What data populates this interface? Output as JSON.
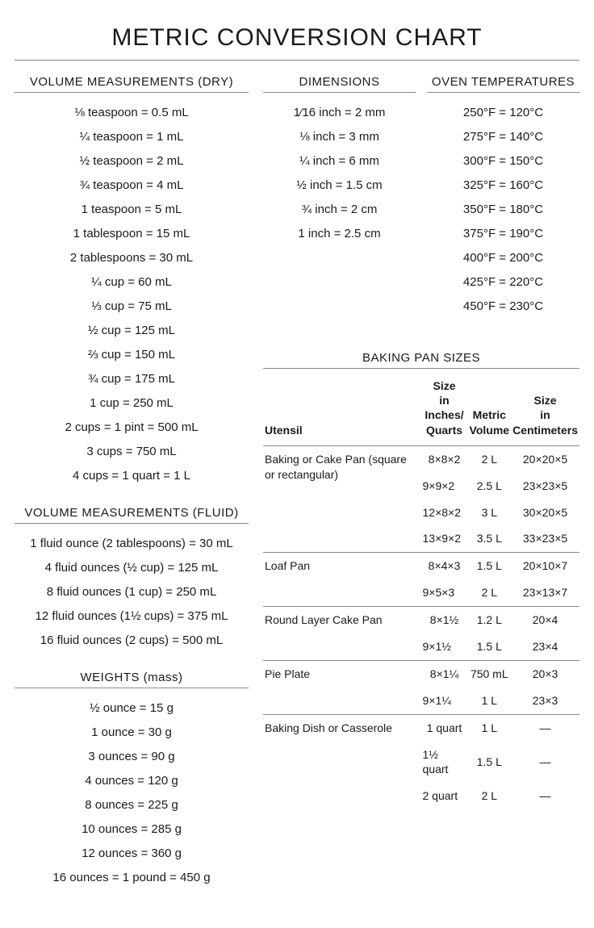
{
  "title": "METRIC CONVERSION CHART",
  "sections": {
    "volume_dry": {
      "header": "VOLUME MEASUREMENTS (DRY)",
      "items": [
        "⅛ teaspoon = 0.5 mL",
        "¼ teaspoon = 1 mL",
        "½ teaspoon = 2 mL",
        "¾ teaspoon = 4 mL",
        "1 teaspoon = 5 mL",
        "1 tablespoon = 15 mL",
        "2 tablespoons = 30 mL",
        "¼ cup = 60 mL",
        "⅓ cup = 75 mL",
        "½ cup = 125 mL",
        "⅔ cup = 150 mL",
        "¾ cup = 175 mL",
        "1 cup = 250 mL",
        "2 cups = 1 pint = 500 mL",
        "3 cups = 750 mL",
        "4 cups = 1 quart = 1 L"
      ]
    },
    "volume_fluid": {
      "header": "VOLUME MEASUREMENTS (FLUID)",
      "items": [
        "1 fluid ounce (2 tablespoons) = 30 mL",
        "4 fluid ounces (½ cup) = 125 mL",
        "8 fluid ounces (1 cup) = 250 mL",
        "12 fluid ounces (1½ cups) = 375 mL",
        "16 fluid ounces (2 cups) = 500 mL"
      ]
    },
    "weights": {
      "header": "WEIGHTS (mass)",
      "items": [
        "½ ounce = 15 g",
        "1 ounce = 30 g",
        "3 ounces = 90 g",
        "4 ounces = 120 g",
        "8 ounces = 225 g",
        "10 ounces = 285 g",
        "12 ounces = 360 g",
        "16 ounces = 1 pound = 450 g"
      ]
    },
    "dimensions": {
      "header": "DIMENSIONS",
      "items": [
        "1⁄16 inch = 2 mm",
        "⅛ inch = 3 mm",
        "¼ inch = 6 mm",
        "½ inch = 1.5 cm",
        "¾ inch = 2 cm",
        "1 inch = 2.5 cm"
      ]
    },
    "oven": {
      "header": "OVEN TEMPERATURES",
      "items": [
        "250°F = 120°C",
        "275°F = 140°C",
        "300°F = 150°C",
        "325°F = 160°C",
        "350°F = 180°C",
        "375°F = 190°C",
        "400°F = 200°C",
        "425°F = 220°C",
        "450°F = 230°C"
      ]
    },
    "pan": {
      "header": "BAKING PAN SIZES",
      "columns": [
        "Utensil",
        "Size in Inches/ Quarts",
        "Metric Volume",
        "Size in Centimeters"
      ],
      "groups": [
        {
          "utensil": "Baking or Cake Pan (square or rectangular)",
          "rows": [
            [
              "8×8×2",
              "2 L",
              "20×20×5"
            ],
            [
              "9×9×2",
              "2.5 L",
              "23×23×5"
            ],
            [
              "12×8×2",
              "3 L",
              "30×20×5"
            ],
            [
              "13×9×2",
              "3.5 L",
              "33×23×5"
            ]
          ]
        },
        {
          "utensil": "Loaf Pan",
          "rows": [
            [
              "8×4×3",
              "1.5 L",
              "20×10×7"
            ],
            [
              "9×5×3",
              "2 L",
              "23×13×7"
            ]
          ]
        },
        {
          "utensil": "Round Layer Cake Pan",
          "rows": [
            [
              "8×1½",
              "1.2 L",
              "20×4"
            ],
            [
              "9×1½",
              "1.5 L",
              "23×4"
            ]
          ]
        },
        {
          "utensil": "Pie Plate",
          "rows": [
            [
              "8×1¼",
              "750 mL",
              "20×3"
            ],
            [
              "9×1¼",
              "1 L",
              "23×3"
            ]
          ]
        },
        {
          "utensil": "Baking Dish or Casserole",
          "rows": [
            [
              "1 quart",
              "1 L",
              "—"
            ],
            [
              "1½ quart",
              "1.5 L",
              "—"
            ],
            [
              "2 quart",
              "2 L",
              "—"
            ]
          ]
        }
      ]
    }
  },
  "colors": {
    "text": "#1a1a1a",
    "rule": "#888888",
    "background": "#ffffff"
  },
  "typography": {
    "title_fontsize": 30,
    "header_fontsize": 15,
    "body_fontsize": 15,
    "table_fontsize": 14,
    "font_family": "Helvetica"
  }
}
